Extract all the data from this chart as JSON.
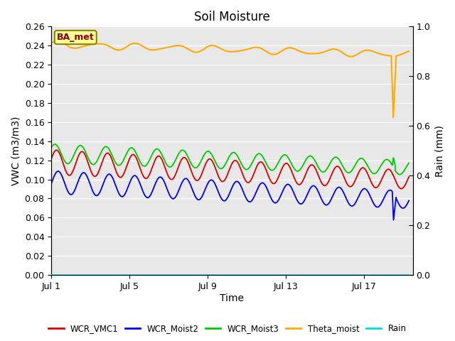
{
  "title": "Soil Moisture",
  "xlabel": "Time",
  "ylabel_left": "VWC (m3/m3)",
  "ylabel_right": "Rain (mm)",
  "annotation": "BA_met",
  "xlim_days": [
    0,
    18.5
  ],
  "ylim_left": [
    0.0,
    0.26
  ],
  "ylim_right": [
    0.0,
    1.0
  ],
  "xtick_labels": [
    "Jul 1",
    "Jul 5",
    "Jul 9",
    "Jul 13",
    "Jul 17"
  ],
  "xtick_positions": [
    0,
    4,
    8,
    12,
    16
  ],
  "colors": {
    "WCR_VMC1": "#dd0000",
    "WCR_Moist2": "#0000ee",
    "WCR_Moist3": "#00cc00",
    "Theta_moist": "#ffaa00",
    "Rain": "#00dddd",
    "background": "#e8e8e8",
    "grid": "#ffffff"
  },
  "legend_entries": [
    "WCR_VMC1",
    "WCR_Moist2",
    "WCR_Moist3",
    "Theta_moist",
    "Rain"
  ]
}
